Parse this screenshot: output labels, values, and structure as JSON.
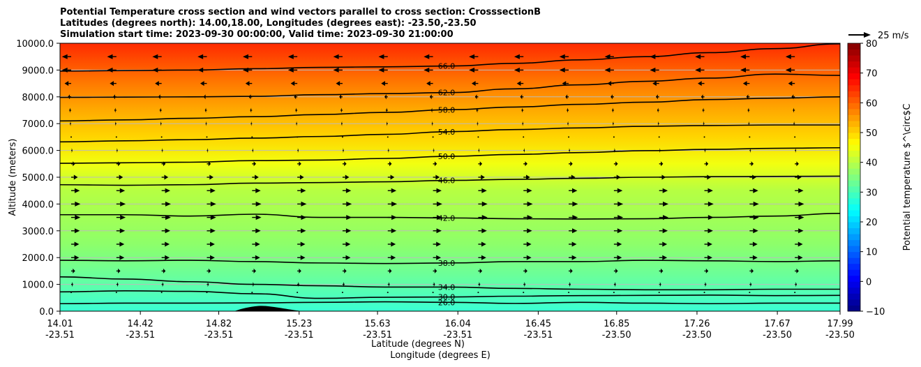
{
  "chart_data": {
    "type": "contour",
    "title_lines": [
      "Potential Temperature cross section and wind vectors parallel to cross section: CrosssectionB",
      "Latitudes (degrees north): 14.00,18.00, Longitudes (degrees east): -23.50,-23.50",
      "Simulation start time: 2023-09-30 00:00:00, Valid time: 2023-09-30 21:00:00"
    ],
    "ylabel": "Altitude (meters)",
    "xlabel_lines": [
      "Latitude (degrees N)",
      "Longitude (degrees E)"
    ],
    "ylim": [
      0,
      10000
    ],
    "yticks": [
      "0.0",
      "1000.0",
      "2000.0",
      "3000.0",
      "4000.0",
      "5000.0",
      "6000.0",
      "7000.0",
      "8000.0",
      "9000.0",
      "10000.0"
    ],
    "xlim": [
      14.01,
      17.99
    ],
    "xticks": [
      {
        "lat": "14.01",
        "lon": "-23.51"
      },
      {
        "lat": "14.42",
        "lon": "-23.51"
      },
      {
        "lat": "14.82",
        "lon": "-23.51"
      },
      {
        "lat": "15.23",
        "lon": "-23.51"
      },
      {
        "lat": "15.63",
        "lon": "-23.51"
      },
      {
        "lat": "16.04",
        "lon": "-23.51"
      },
      {
        "lat": "16.45",
        "lon": "-23.51"
      },
      {
        "lat": "16.85",
        "lon": "-23.50"
      },
      {
        "lat": "17.26",
        "lon": "-23.50"
      },
      {
        "lat": "17.67",
        "lon": "-23.50"
      },
      {
        "lat": "17.99",
        "lon": "-23.50"
      }
    ],
    "grid": true,
    "colorbar": {
      "label": "Potential temperature $^\\circ$C",
      "range": [
        -10,
        80
      ],
      "ticks": [
        "-10",
        "0",
        "10",
        "20",
        "30",
        "40",
        "50",
        "60",
        "70",
        "80"
      ],
      "colormap": "jet"
    },
    "quiver_key": "25 m/s",
    "contours": [
      {
        "label": "26.0",
        "alt": [
          280,
          300,
          300,
          310,
          330,
          350,
          330,
          290,
          330,
          300,
          280,
          300,
          300
        ]
      },
      {
        "label": "30.0",
        "alt": [
          720,
          760,
          740,
          650,
          480,
          520,
          530,
          560,
          580,
          590,
          600,
          580,
          590
        ]
      },
      {
        "label": "34.0",
        "alt": [
          1280,
          1200,
          1100,
          1000,
          950,
          900,
          900,
          850,
          820,
          800,
          800,
          820,
          820
        ]
      },
      {
        "label": "38.0",
        "alt": [
          1900,
          1880,
          1900,
          1850,
          1800,
          1780,
          1800,
          1850,
          1850,
          1900,
          1880,
          1850,
          1880
        ]
      },
      {
        "label": "42.0",
        "alt": [
          3600,
          3600,
          3550,
          3620,
          3500,
          3500,
          3480,
          3450,
          3440,
          3450,
          3500,
          3550,
          3650
        ]
      },
      {
        "label": "46.0",
        "alt": [
          4720,
          4700,
          4720,
          4780,
          4800,
          4830,
          4880,
          4920,
          4960,
          5000,
          5020,
          5030,
          5040
        ]
      },
      {
        "label": "50.0",
        "alt": [
          5520,
          5540,
          5560,
          5620,
          5640,
          5700,
          5780,
          5850,
          5920,
          5990,
          6040,
          6080,
          6100
        ]
      },
      {
        "label": "54.0",
        "alt": [
          6320,
          6360,
          6400,
          6460,
          6520,
          6600,
          6700,
          6780,
          6840,
          6900,
          6930,
          6950,
          6950
        ]
      },
      {
        "label": "58.0",
        "alt": [
          7100,
          7140,
          7200,
          7260,
          7340,
          7420,
          7520,
          7620,
          7720,
          7800,
          7900,
          7950,
          8000
        ]
      },
      {
        "label": "62.0",
        "alt": [
          7980,
          7990,
          8000,
          8020,
          8080,
          8120,
          8160,
          8300,
          8450,
          8580,
          8700,
          8850,
          8800
        ]
      },
      {
        "label": "66.0",
        "alt": [
          8960,
          8980,
          9000,
          9050,
          9100,
          9120,
          9150,
          9250,
          9380,
          9500,
          9650,
          9800,
          9980
        ]
      }
    ],
    "terrain": {
      "lat_start": 14.9,
      "lat_peak": 15.04,
      "lat_end": 15.25,
      "peak_alt": 200
    },
    "wind_rows": [
      {
        "alt": 9500,
        "u": -14
      },
      {
        "alt": 9000,
        "u": -14
      },
      {
        "alt": 8500,
        "u": -10
      },
      {
        "alt": 8000,
        "u": -5
      },
      {
        "alt": 7500,
        "u": -3
      },
      {
        "alt": 7000,
        "u": -2
      },
      {
        "alt": 6500,
        "u": -1
      },
      {
        "alt": 6000,
        "u": 2
      },
      {
        "alt": 5500,
        "u": 6
      },
      {
        "alt": 5000,
        "u": 10
      },
      {
        "alt": 4500,
        "u": 13
      },
      {
        "alt": 4000,
        "u": 14
      },
      {
        "alt": 3500,
        "u": 14
      },
      {
        "alt": 3000,
        "u": 13
      },
      {
        "alt": 2500,
        "u": 12
      },
      {
        "alt": 2000,
        "u": 12
      },
      {
        "alt": 1500,
        "u": 6
      },
      {
        "alt": 1000,
        "u": 3
      },
      {
        "alt": 700,
        "u": 1
      }
    ]
  }
}
